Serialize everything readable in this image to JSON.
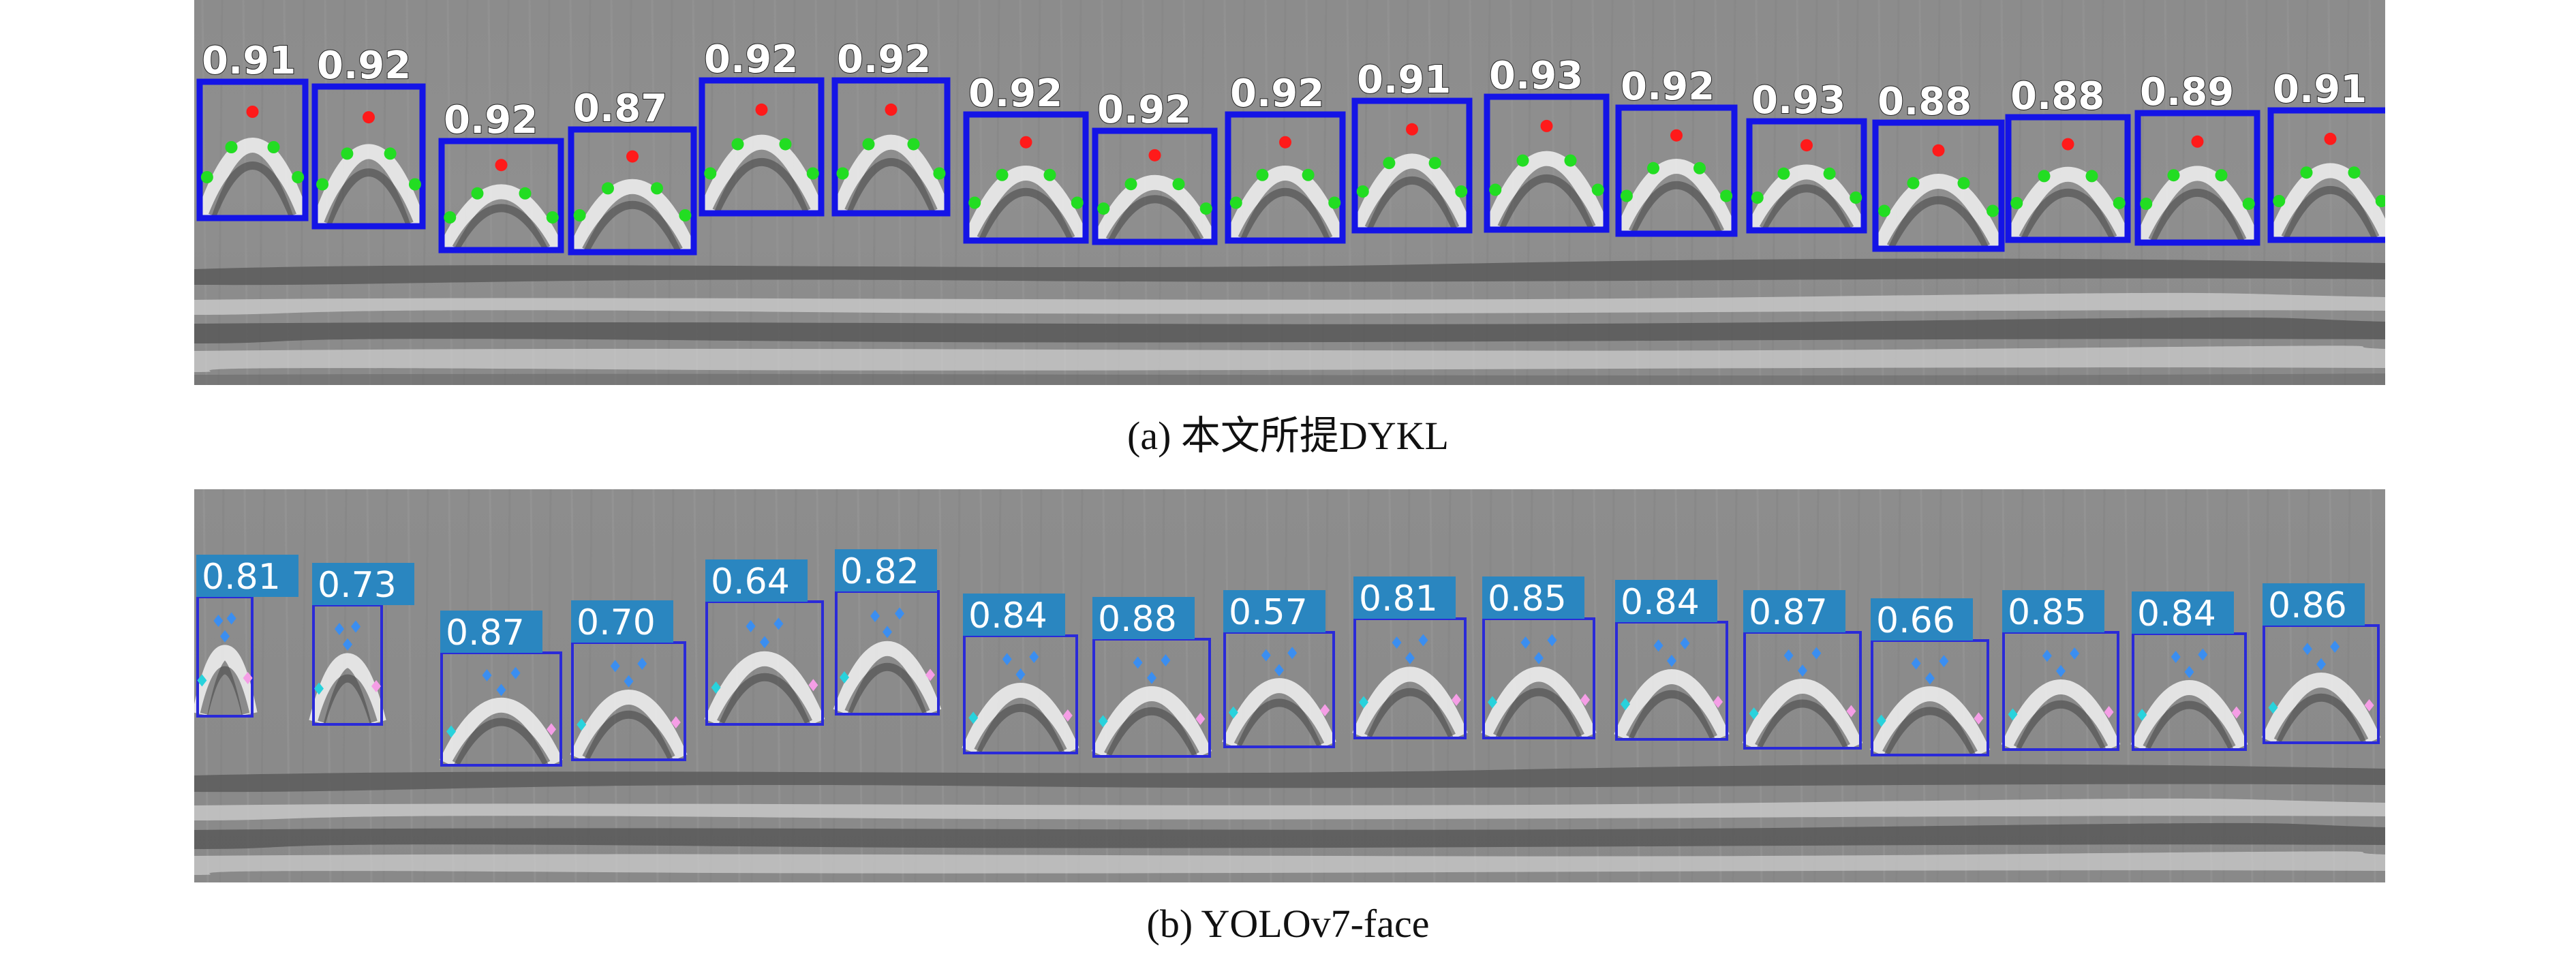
{
  "figure": {
    "panel_a": {
      "caption": "(a) 本文所提DYKL",
      "box_color": "#1414e6",
      "label_color": "#ffffff",
      "apex_color": "#ff1a1a",
      "limb_color": "#22dd22",
      "scores": [
        "0.91",
        "0.92",
        "0.92",
        "0.87",
        "0.92",
        "0.92",
        "0.92",
        "0.92",
        "0.92",
        "0.91",
        "0.93",
        "0.92",
        "0.93",
        "0.88",
        "0.88",
        "0.89",
        "0.91"
      ]
    },
    "panel_b": {
      "caption": "(b) YOLOv7-face",
      "box_color": "#2a2ad8",
      "label_bg": "#2a86c0",
      "label_color": "#ffffff",
      "kp_blue": "#3b8ef0",
      "kp_cyan": "#28d2dc",
      "kp_pink": "#f59ee6",
      "scores": [
        "0.81",
        "0.73",
        "0.87",
        "0.70",
        "0.64",
        "0.82",
        "0.84",
        "0.88",
        "0.57",
        "0.81",
        "0.85",
        "0.84",
        "0.87",
        "0.66",
        "0.85",
        "0.84",
        "0.86"
      ]
    }
  }
}
